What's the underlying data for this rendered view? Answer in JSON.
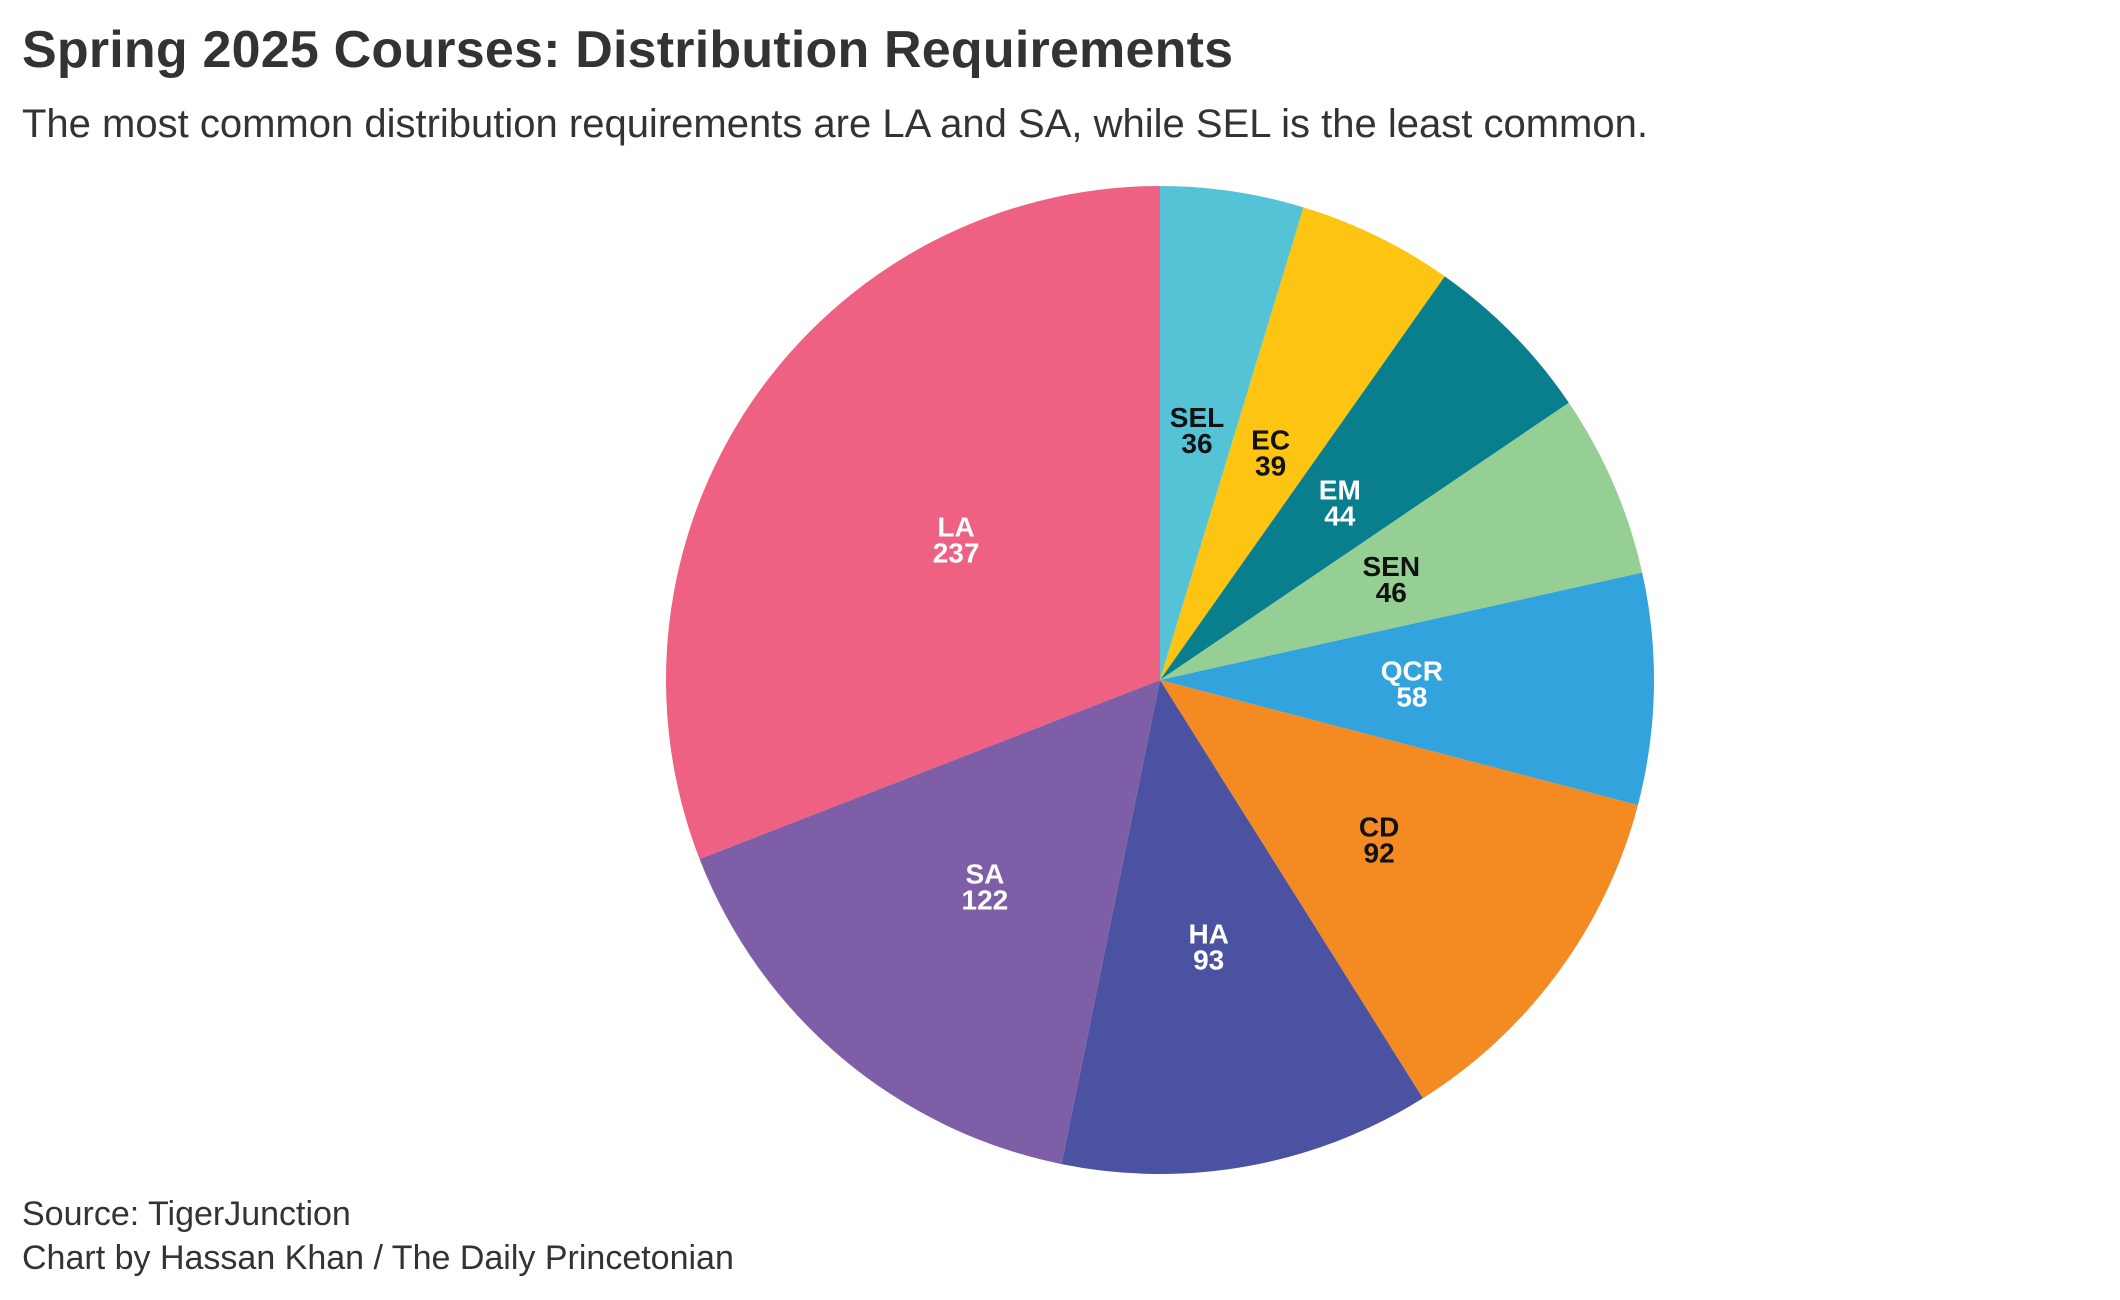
{
  "header": {
    "title": "Spring 2025 Courses: Distribution Requirements",
    "subtitle": "The most common distribution requirements are LA and SA, while SEL is the least common."
  },
  "footer": {
    "source": "Source: TigerJunction",
    "credit": "Chart by Hassan Khan / The Daily Princetonian"
  },
  "chart_data": {
    "type": "pie",
    "title": "Spring 2025 Courses: Distribution Requirements",
    "subtitle": "The most common distribution requirements are LA and SA, while SEL is the least common.",
    "start": "top",
    "direction": "clockwise",
    "slices": [
      {
        "label": "SEL",
        "value": 36,
        "color": "#55C3D6",
        "text_color": "#111111"
      },
      {
        "label": "EC",
        "value": 39,
        "color": "#FDC512",
        "text_color": "#111111"
      },
      {
        "label": "EM",
        "value": 44,
        "color": "#097F8E",
        "text_color": "#ffffff"
      },
      {
        "label": "SEN",
        "value": 46,
        "color": "#95CF93",
        "text_color": "#111111"
      },
      {
        "label": "QCR",
        "value": 58,
        "color": "#33A3DD",
        "text_color": "#ffffff"
      },
      {
        "label": "CD",
        "value": 92,
        "color": "#F38A22",
        "text_color": "#111111"
      },
      {
        "label": "HA",
        "value": 93,
        "color": "#4B52A1",
        "text_color": "#ffffff"
      },
      {
        "label": "SA",
        "value": 122,
        "color": "#7F5EA8",
        "text_color": "#ffffff"
      },
      {
        "label": "LA",
        "value": 237,
        "color": "#EF6182",
        "text_color": "#ffffff"
      }
    ]
  }
}
